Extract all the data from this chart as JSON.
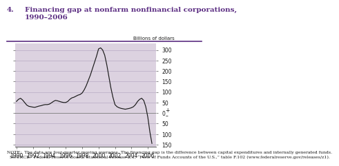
{
  "title_num": "4.",
  "title_text": "Financing gap at nonfarm nonfinancial corporations,\n1990–2006",
  "ylabel": "Billions of dollars",
  "bg_color": "#dcd2e0",
  "line_color": "#1a1a1a",
  "title_color": "#5b2d82",
  "ylim": [
    -160,
    330
  ],
  "xlim": [
    1989.85,
    2007.0
  ],
  "yticks": [
    -150,
    -100,
    -50,
    0,
    50,
    100,
    150,
    200,
    250,
    300
  ],
  "ytick_labels": [
    "150",
    "100",
    "50",
    "0",
    "50",
    "100",
    "150",
    "200",
    "250",
    "300"
  ],
  "xticks": [
    1990,
    1992,
    1994,
    1996,
    1998,
    2000,
    2002,
    2004,
    2006
  ],
  "note_text": "NOTE:  The data are four-quarter moving averages. The financing gap is the difference between capital expenditures and internally generated funds.\n  SOURCE:  Federal Reserve Board, Statistical Release Z.1, “Flow of Funds Accounts of the U.S.,” table F.102 (www.federalreserve.gov/releases/z1).",
  "years": [
    1990.0,
    1990.25,
    1990.5,
    1990.75,
    1991.0,
    1991.25,
    1991.5,
    1991.75,
    1992.0,
    1992.25,
    1992.5,
    1992.75,
    1993.0,
    1993.25,
    1993.5,
    1993.75,
    1994.0,
    1994.25,
    1994.5,
    1994.75,
    1995.0,
    1995.25,
    1995.5,
    1995.75,
    1996.0,
    1996.25,
    1996.5,
    1996.75,
    1997.0,
    1997.25,
    1997.5,
    1997.75,
    1998.0,
    1998.25,
    1998.5,
    1998.75,
    1999.0,
    1999.25,
    1999.5,
    1999.75,
    2000.0,
    2000.25,
    2000.5,
    2000.75,
    2001.0,
    2001.25,
    2001.5,
    2001.75,
    2002.0,
    2002.25,
    2002.5,
    2002.75,
    2003.0,
    2003.25,
    2003.5,
    2003.75,
    2004.0,
    2004.25,
    2004.5,
    2004.75,
    2005.0,
    2005.25,
    2005.5,
    2005.75,
    2006.0,
    2006.25,
    2006.5
  ],
  "values": [
    55,
    65,
    70,
    62,
    50,
    38,
    32,
    30,
    28,
    27,
    30,
    33,
    35,
    38,
    40,
    40,
    42,
    48,
    55,
    60,
    58,
    55,
    52,
    50,
    50,
    55,
    65,
    72,
    75,
    80,
    85,
    88,
    95,
    110,
    130,
    155,
    180,
    210,
    240,
    270,
    305,
    310,
    300,
    275,
    230,
    175,
    120,
    75,
    40,
    30,
    25,
    22,
    20,
    18,
    20,
    22,
    25,
    30,
    40,
    55,
    65,
    70,
    60,
    30,
    -20,
    -90,
    -145
  ]
}
